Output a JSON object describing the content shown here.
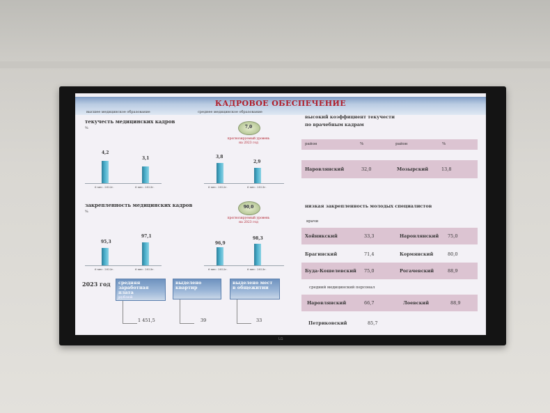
{
  "title": "КАДРОВОЕ ОБЕСПЕЧЕНИЕ",
  "subheaders": {
    "left": "высшее медицинское образование",
    "right": "среднее медицинское образование"
  },
  "turnover": {
    "heading": "текучесть медицинских кадров",
    "unit": "%",
    "badge_value": "7,0",
    "badge_note_line1": "прогнозируемый уровень",
    "badge_note_line2": "на 2023 год",
    "higher": {
      "values": [
        "4,2",
        "3,1"
      ],
      "labels": [
        "6 мес. 2022г.",
        "6 мес. 2023г."
      ],
      "fill": [
        0.8,
        0.6
      ]
    },
    "secondary": {
      "values": [
        "3,8",
        "2,9"
      ],
      "labels": [
        "6 мес. 2022г.",
        "6 мес. 2023г."
      ],
      "fill": [
        0.72,
        0.55
      ]
    }
  },
  "retention": {
    "heading": "закрепленность медицинских кадров",
    "unit": "%",
    "badge_value": "90,0",
    "badge_note_line1": "прогнозируемый уровень",
    "badge_note_line2": "на 2023 год",
    "higher": {
      "values": [
        "95,3",
        "97,1"
      ],
      "labels": [
        "6 мес. 2022г.",
        "6 мес. 2023г."
      ],
      "fill": [
        0.62,
        0.82
      ]
    },
    "secondary": {
      "values": [
        "96,9",
        "98,3"
      ],
      "labels": [
        "6 мес. 2022г.",
        "6 мес. 2023г."
      ],
      "fill": [
        0.64,
        0.78
      ]
    }
  },
  "year_block": {
    "label": "2023 год",
    "salary_title": "средняя заработная плата",
    "salary_unit": "рублей",
    "salary_value": "1 451,5",
    "apartments_title": "выделено квартир",
    "apartments_value": "39",
    "dorm_title": "выделено мест в общежитии",
    "dorm_value": "33"
  },
  "high_turnover": {
    "heading_line1": "высокий коэффициент текучести",
    "heading_line2": "по врачебным кадрам",
    "columns": [
      "район",
      "%",
      "район",
      "%"
    ],
    "row": [
      "Наровлянский",
      "32,0",
      "Мозырский",
      "13,8"
    ]
  },
  "low_retention": {
    "heading": "низкая закрепленность молодых специалистов",
    "doctors_label": "врачи",
    "doctors": [
      [
        "Хойникский",
        "33,3",
        "Наровлянский",
        "75,0"
      ],
      [
        "Брагинский",
        "71,4",
        "Кормянский",
        "80,0"
      ],
      [
        "Буда-Кошелевский",
        "75,0",
        "Рогачевский",
        "88,9"
      ]
    ],
    "nurses_label": "средний медицинский персонал",
    "nurses": [
      [
        "Наровлянский",
        "66,7",
        "Лоевский",
        "88,9"
      ]
    ],
    "last_row": [
      "Петриковский",
      "85,7"
    ]
  },
  "tv_brand": "LG"
}
